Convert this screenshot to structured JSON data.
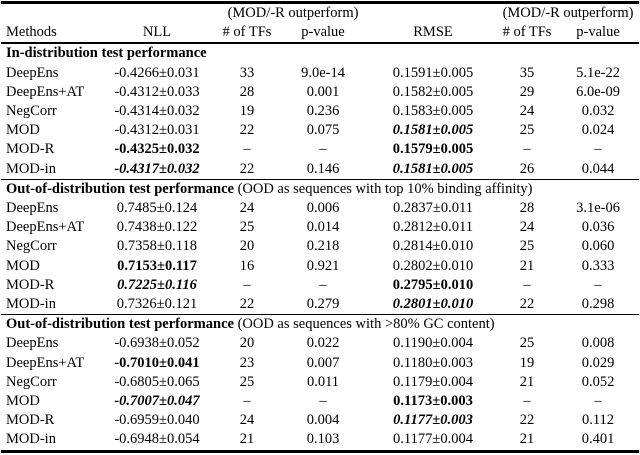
{
  "header": {
    "group_label": "(MOD/-R outperform)",
    "columns": {
      "methods": "Methods",
      "nll": "NLL",
      "tfs": "# of TFs",
      "pvalue": "p-value",
      "rmse": "RMSE"
    }
  },
  "sections": [
    {
      "title": "In-distribution test performance",
      "note": "",
      "rows": [
        {
          "method": "DeepEns",
          "nll": "-0.4266±0.031",
          "tfs1": "33",
          "p1": "9.0e-14",
          "rmse": "0.1591±0.005",
          "tfs2": "35",
          "p2": "5.1e-22"
        },
        {
          "method": "DeepEns+AT",
          "nll": "-0.4312±0.033",
          "tfs1": "28",
          "p1": "0.001",
          "rmse": "0.1582±0.005",
          "tfs2": "29",
          "p2": "6.0e-09"
        },
        {
          "method": "NegCorr",
          "nll": "-0.4314±0.032",
          "tfs1": "19",
          "p1": "0.236",
          "rmse": "0.1583±0.005",
          "tfs2": "24",
          "p2": "0.032"
        },
        {
          "method": "MOD",
          "nll": "-0.4312±0.031",
          "tfs1": "22",
          "p1": "0.075",
          "rmse": "0.1581±0.005",
          "tfs2": "25",
          "p2": "0.024"
        },
        {
          "method": "MOD-R",
          "nll": "-0.4325±0.032",
          "tfs1": "–",
          "p1": "–",
          "rmse": "0.1579±0.005",
          "tfs2": "–",
          "p2": "–"
        },
        {
          "method": "MOD-in",
          "nll": "-0.4317±0.032",
          "tfs1": "22",
          "p1": "0.146",
          "rmse": "0.1581±0.005",
          "tfs2": "26",
          "p2": "0.044"
        }
      ]
    },
    {
      "title": "Out-of-distribution test performance",
      "note": "(OOD as sequences with top 10% binding affinity)",
      "rows": [
        {
          "method": "DeepEns",
          "nll": "0.7485±0.124",
          "tfs1": "24",
          "p1": "0.006",
          "rmse": "0.2837±0.011",
          "tfs2": "28",
          "p2": "3.1e-06"
        },
        {
          "method": "DeepEns+AT",
          "nll": "0.7438±0.122",
          "tfs1": "25",
          "p1": "0.014",
          "rmse": "0.2812±0.011",
          "tfs2": "24",
          "p2": "0.036"
        },
        {
          "method": "NegCorr",
          "nll": "0.7358±0.118",
          "tfs1": "20",
          "p1": "0.218",
          "rmse": "0.2814±0.010",
          "tfs2": "25",
          "p2": "0.060"
        },
        {
          "method": "MOD",
          "nll": "0.7153±0.117",
          "tfs1": "16",
          "p1": "0.921",
          "rmse": "0.2802±0.010",
          "tfs2": "21",
          "p2": "0.333"
        },
        {
          "method": "MOD-R",
          "nll": "0.7225±0.116",
          "tfs1": "–",
          "p1": "–",
          "rmse": "0.2795±0.010",
          "tfs2": "–",
          "p2": "–"
        },
        {
          "method": "MOD-in",
          "nll": "0.7326±0.121",
          "tfs1": "22",
          "p1": "0.279",
          "rmse": "0.2801±0.010",
          "tfs2": "22",
          "p2": "0.298"
        }
      ]
    },
    {
      "title": "Out-of-distribution test performance",
      "note": "(OOD as sequences with >80% GC content)",
      "rows": [
        {
          "method": "DeepEns",
          "nll": "-0.6938±0.052",
          "tfs1": "20",
          "p1": "0.022",
          "rmse": "0.1190±0.004",
          "tfs2": "25",
          "p2": "0.008"
        },
        {
          "method": "DeepEns+AT",
          "nll": "-0.7010±0.041",
          "tfs1": "23",
          "p1": "0.007",
          "rmse": "0.1180±0.003",
          "tfs2": "19",
          "p2": "0.029"
        },
        {
          "method": "NegCorr",
          "nll": "-0.6805±0.065",
          "tfs1": "25",
          "p1": "0.011",
          "rmse": "0.1179±0.004",
          "tfs2": "21",
          "p2": "0.052"
        },
        {
          "method": "MOD",
          "nll": "-0.7007±0.047",
          "tfs1": "–",
          "p1": "–",
          "rmse": "0.1173±0.003",
          "tfs2": "–",
          "p2": "–"
        },
        {
          "method": "MOD-R",
          "nll": "-0.6959±0.040",
          "tfs1": "24",
          "p1": "0.004",
          "rmse": "0.1177±0.003",
          "tfs2": "22",
          "p2": "0.112"
        },
        {
          "method": "MOD-in",
          "nll": "-0.6948±0.054",
          "tfs1": "21",
          "p1": "0.103",
          "rmse": "0.1177±0.004",
          "tfs2": "21",
          "p2": "0.401"
        }
      ]
    }
  ]
}
